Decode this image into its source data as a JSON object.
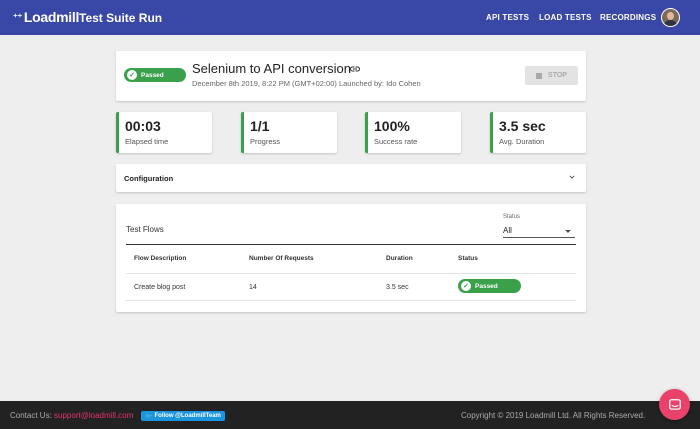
{
  "topbar": {
    "logo": "Loadmill",
    "title": "Test Suite Run",
    "nav": [
      "API TESTS",
      "LOAD TESTS",
      "RECORDINGS"
    ],
    "bg_color": "#3948a6"
  },
  "run": {
    "status": "Passed",
    "title": "Selenium to API conversion",
    "meta": "December 8th 2019, 8:22 PM (GMT+02:00) Launched by: Ido Cohen",
    "stop_label": "STOP",
    "status_color": "#3aa14a"
  },
  "stats": [
    {
      "value": "00:03",
      "label": "Elapsed time"
    },
    {
      "value": "1/1",
      "label": "Progress"
    },
    {
      "value": "100%",
      "label": "Success rate"
    },
    {
      "value": "3.5 sec",
      "label": "Avg. Duration"
    }
  ],
  "configuration": {
    "label": "Configuration"
  },
  "flows": {
    "title": "Test Flows",
    "filter": {
      "label": "Status",
      "value": "All"
    },
    "columns": [
      "Flow Description",
      "Number Of Requests",
      "Duration",
      "Status"
    ],
    "rows": [
      {
        "description": "Create blog post",
        "requests": "14",
        "duration": "3.5 sec",
        "status": "Passed"
      }
    ]
  },
  "footer": {
    "contact_label": "Contact Us:",
    "contact_email": "support@loadmill.com",
    "twitter": "Follow @LoadmillTeam",
    "copyright": "Copyright © 2019 Loadmill Ltd. All Rights Reserved.",
    "accent_color": "#e5336b"
  }
}
